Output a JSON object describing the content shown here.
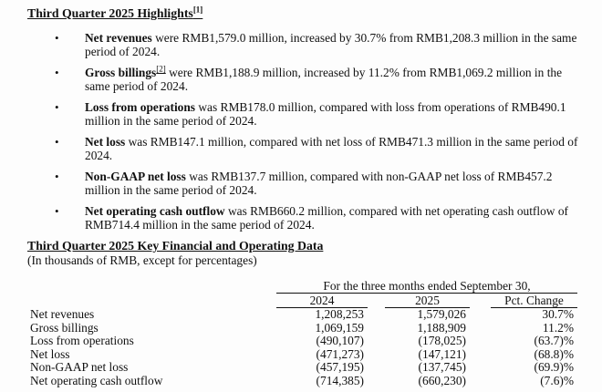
{
  "highlights": {
    "title": "Third Quarter 2025 Highlights",
    "title_sup": "[1]",
    "bullet_glyph": "•",
    "bullets": [
      {
        "lead": "Net revenues",
        "sup": "",
        "rest": " were RMB1,579.0 million, increased by 30.7% from RMB1,208.3 million in the same period of 2024."
      },
      {
        "lead": "Gross billings",
        "sup": "[2]",
        "rest": " were RMB1,188.9 million, increased by 11.2% from RMB1,069.2 million in the same period of 2024."
      },
      {
        "lead": "Loss from operations",
        "sup": "",
        "rest": " was RMB178.0 million, compared with loss from operations of RMB490.1 million in the same period of 2024."
      },
      {
        "lead": "Net loss",
        "sup": "",
        "rest": " was RMB147.1 million, compared with net loss of RMB471.3 million in the same period of 2024."
      },
      {
        "lead": "Non-GAAP net loss",
        "sup": "",
        "rest": " was RMB137.7 million, compared with non-GAAP net loss of RMB457.2 million in the same period of 2024."
      },
      {
        "lead": "Net operating cash outflow",
        "sup": "",
        "rest": " was RMB660.2 million, compared with net operating cash outflow of RMB714.4 million in the same period of 2024."
      }
    ]
  },
  "key_data": {
    "title": "Third Quarter 2025 Key Financial and Operating Data",
    "subtitle": "(In thousands of RMB, except for percentages)"
  },
  "table": {
    "span_header": "For the three months ended September 30,",
    "columns": [
      "2024",
      "2025",
      "Pct. Change"
    ],
    "rows": [
      {
        "label": "Net revenues",
        "y2024": "1,208,253",
        "y2025": "1,579,026",
        "pct": "30.7%"
      },
      {
        "label": "Gross billings",
        "y2024": "1,069,159",
        "y2025": "1,188,909",
        "pct": "11.2%"
      },
      {
        "label": "Loss from operations",
        "y2024": "(490,107)",
        "y2025": "(178,025)",
        "pct": "(63.7)%"
      },
      {
        "label": "Net loss",
        "y2024": "(471,273)",
        "y2025": "(147,121)",
        "pct": "(68.8)%"
      },
      {
        "label": "Non-GAAP net loss",
        "y2024": "(457,195)",
        "y2025": "(137,745)",
        "pct": "(69.9)%"
      },
      {
        "label": "Net operating cash outflow",
        "y2024": "(714,385)",
        "y2025": "(660,230)",
        "pct": "(7.6)%"
      }
    ]
  }
}
